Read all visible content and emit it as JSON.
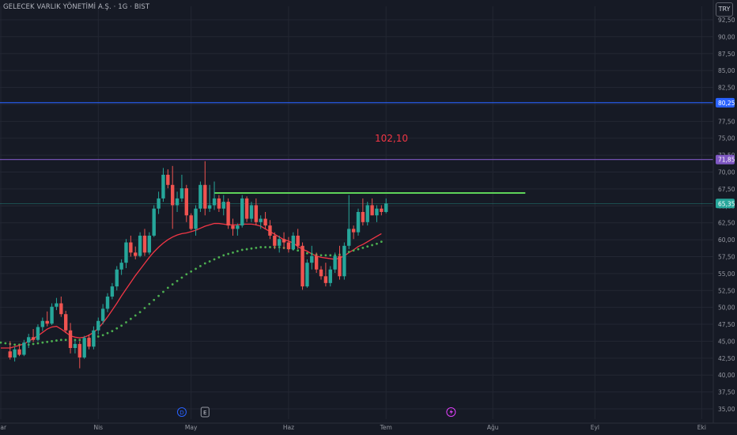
{
  "header": {
    "title": "GELECEK VARLIK YÖNETİMİ A.Ş. · 1G · BIST",
    "currency": "TRY"
  },
  "annotation": "102,10",
  "markers": {
    "dividend": "D",
    "earnings": "E"
  },
  "colors": {
    "background": "#161a25",
    "grid": "#232733",
    "up": "#26a69a",
    "down": "#ef5350",
    "ema_red": "#f23645",
    "sma_green": "#4caf50",
    "blue_line": "#2962ff",
    "purple_line": "#7e57c2",
    "resistance": "#5fd45a",
    "annotation": "#f23645",
    "axis_text": "#9598a1"
  },
  "chart_data": {
    "type": "candlestick",
    "symbol": "GELECEK VARLIK YÖNETİMİ A.Ş.",
    "interval": "1G",
    "exchange": "BIST",
    "y_axis": {
      "min": 35,
      "max": 92.5,
      "step": 2.5,
      "tick_labels": [
        "35,00",
        "37,50",
        "40,00",
        "42,50",
        "45,00",
        "47,50",
        "50,00",
        "52,50",
        "55,00",
        "57,50",
        "60,00",
        "62,50",
        "65,00",
        "67,50",
        "70,00",
        "72,50",
        "75,00",
        "77,50",
        "80,00",
        "82,50",
        "85,00",
        "87,50",
        "90,00",
        "92,50"
      ]
    },
    "x_axis": {
      "labels": [
        {
          "text": "Mar",
          "bar": 0
        },
        {
          "text": "Nis",
          "bar": 21
        },
        {
          "text": "May",
          "bar": 41
        },
        {
          "text": "Haz",
          "bar": 62
        },
        {
          "text": "Tem",
          "bar": 83
        },
        {
          "text": "Ağu",
          "bar": 106
        },
        {
          "text": "Eyl",
          "bar": 128
        },
        {
          "text": "Eki",
          "bar": 151
        }
      ]
    },
    "candles": [
      [
        43.5,
        45.0,
        42.3,
        42.6
      ],
      [
        42.6,
        44.2,
        42.0,
        43.8
      ],
      [
        43.8,
        44.5,
        42.8,
        43.0
      ],
      [
        43.0,
        45.2,
        42.8,
        44.8
      ],
      [
        44.8,
        46.1,
        44.0,
        45.6
      ],
      [
        45.6,
        46.8,
        44.9,
        45.2
      ],
      [
        45.2,
        47.5,
        45.0,
        47.1
      ],
      [
        47.1,
        48.5,
        46.5,
        48.0
      ],
      [
        48.0,
        49.4,
        47.2,
        47.6
      ],
      [
        47.6,
        50.6,
        47.4,
        50.1
      ],
      [
        50.1,
        51.4,
        49.6,
        50.6
      ],
      [
        50.6,
        51.6,
        48.6,
        49.0
      ],
      [
        49.0,
        49.5,
        46.2,
        46.6
      ],
      [
        46.6,
        47.7,
        43.2,
        44.0
      ],
      [
        44.0,
        45.2,
        43.2,
        44.6
      ],
      [
        44.6,
        45.0,
        41.0,
        42.6
      ],
      [
        42.6,
        45.8,
        42.4,
        45.5
      ],
      [
        45.5,
        46.0,
        43.8,
        44.2
      ],
      [
        44.2,
        47.2,
        43.8,
        46.6
      ],
      [
        46.6,
        48.5,
        46.0,
        48.0
      ],
      [
        48.0,
        50.5,
        47.5,
        49.8
      ],
      [
        49.8,
        52.1,
        49.3,
        51.6
      ],
      [
        51.6,
        53.6,
        51.2,
        53.1
      ],
      [
        53.1,
        56.1,
        52.5,
        55.6
      ],
      [
        55.6,
        57.1,
        54.8,
        56.6
      ],
      [
        56.6,
        60.1,
        55.8,
        59.6
      ],
      [
        59.6,
        60.6,
        57.5,
        58.1
      ],
      [
        58.1,
        59.0,
        57.1,
        57.6
      ],
      [
        57.6,
        61.1,
        57.4,
        60.6
      ],
      [
        60.6,
        61.6,
        57.6,
        58.1
      ],
      [
        58.1,
        61.1,
        57.8,
        60.6
      ],
      [
        60.6,
        65.1,
        60.4,
        64.6
      ],
      [
        64.6,
        67.1,
        63.8,
        66.1
      ],
      [
        66.1,
        70.6,
        65.6,
        69.6
      ],
      [
        69.6,
        70.4,
        67.6,
        68.1
      ],
      [
        68.1,
        70.9,
        61.6,
        65.1
      ],
      [
        65.1,
        67.1,
        64.1,
        66.1
      ],
      [
        66.1,
        69.6,
        65.6,
        67.6
      ],
      [
        67.6,
        68.1,
        62.6,
        63.6
      ],
      [
        63.6,
        63.9,
        61.4,
        61.6
      ],
      [
        61.6,
        65.1,
        60.6,
        64.6
      ],
      [
        64.6,
        68.6,
        64.1,
        68.1
      ],
      [
        68.1,
        71.6,
        63.6,
        64.6
      ],
      [
        64.6,
        68.1,
        64.1,
        65.1
      ],
      [
        65.1,
        68.6,
        64.4,
        66.1
      ],
      [
        66.1,
        66.6,
        64.1,
        64.6
      ],
      [
        64.6,
        66.6,
        63.6,
        65.6
      ],
      [
        65.6,
        66.1,
        61.6,
        62.1
      ],
      [
        62.1,
        63.1,
        60.6,
        61.6
      ],
      [
        61.6,
        62.4,
        60.6,
        62.1
      ],
      [
        62.1,
        66.6,
        61.8,
        66.1
      ],
      [
        66.1,
        66.4,
        62.6,
        63.1
      ],
      [
        63.1,
        65.6,
        62.6,
        65.1
      ],
      [
        65.1,
        66.1,
        62.1,
        62.6
      ],
      [
        62.6,
        63.6,
        61.6,
        63.1
      ],
      [
        63.1,
        64.1,
        61.6,
        62.1
      ],
      [
        62.1,
        62.9,
        60.1,
        60.6
      ],
      [
        60.6,
        61.1,
        58.6,
        59.1
      ],
      [
        59.1,
        60.6,
        58.1,
        60.1
      ],
      [
        60.1,
        61.1,
        58.6,
        59.6
      ],
      [
        59.6,
        60.4,
        58.1,
        58.6
      ],
      [
        58.6,
        61.1,
        58.4,
        60.6
      ],
      [
        60.6,
        61.6,
        58.6,
        59.1
      ],
      [
        59.1,
        59.6,
        52.6,
        53.1
      ],
      [
        53.1,
        57.1,
        52.9,
        56.6
      ],
      [
        56.6,
        59.1,
        55.6,
        57.6
      ],
      [
        57.6,
        58.1,
        55.1,
        55.6
      ],
      [
        55.6,
        56.1,
        54.1,
        54.6
      ],
      [
        54.6,
        56.6,
        53.1,
        53.6
      ],
      [
        53.6,
        56.1,
        53.1,
        55.6
      ],
      [
        55.6,
        58.1,
        55.1,
        57.6
      ],
      [
        57.6,
        59.1,
        54.1,
        54.6
      ],
      [
        54.6,
        59.6,
        54.1,
        59.1
      ],
      [
        59.1,
        66.6,
        58.6,
        61.6
      ],
      [
        61.6,
        62.1,
        60.1,
        61.1
      ],
      [
        61.1,
        64.6,
        60.6,
        64.1
      ],
      [
        64.1,
        66.1,
        62.1,
        62.6
      ],
      [
        62.6,
        65.6,
        62.1,
        65.1
      ],
      [
        65.1,
        66.1,
        63.6,
        63.6
      ],
      [
        63.6,
        65.1,
        62.6,
        64.6
      ],
      [
        64.6,
        65.1,
        63.6,
        64.1
      ],
      [
        64.1,
        66.1,
        63.9,
        65.35
      ]
    ],
    "candle_first_bar": 2,
    "series": [
      {
        "name": "",
        "style": "line",
        "values": [
          44.0,
          44.0,
          44.0,
          44.2,
          44.4,
          44.6,
          45.0,
          45.4,
          45.8,
          46.3,
          46.8,
          47.1,
          47.2,
          46.8,
          46.3,
          45.8,
          45.6,
          45.5,
          45.6,
          45.9,
          46.3,
          46.9,
          47.7,
          48.6,
          49.6,
          50.6,
          51.7,
          52.7,
          53.7,
          54.7,
          55.6,
          56.5,
          57.4,
          58.2,
          58.9,
          59.5,
          60.0,
          60.4,
          60.7,
          60.9,
          61.0,
          61.2,
          61.4,
          61.7,
          62.0,
          62.2,
          62.4,
          62.4,
          62.3,
          62.2,
          62.2,
          62.2,
          62.3,
          62.3,
          62.3,
          62.2,
          62.0,
          61.6,
          61.2,
          60.8,
          60.4,
          60.0,
          59.8,
          59.5,
          59.0,
          58.6,
          58.3,
          57.9,
          57.6,
          57.4,
          57.3,
          57.2,
          57.1,
          57.3,
          57.6,
          58.1,
          58.5,
          59.0,
          59.3,
          59.7,
          60.1,
          60.5,
          60.9
        ]
      },
      {
        "name": "",
        "style": "dots",
        "values": [
          44.8,
          44.7,
          44.6,
          44.5,
          44.5,
          44.5,
          44.5,
          44.6,
          44.7,
          44.8,
          44.9,
          45.0,
          45.1,
          45.2,
          45.2,
          45.2,
          45.2,
          45.2,
          45.3,
          45.4,
          45.5,
          45.7,
          45.9,
          46.2,
          46.5,
          46.9,
          47.3,
          47.8,
          48.3,
          48.8,
          49.3,
          49.9,
          50.5,
          51.1,
          51.7,
          52.3,
          52.9,
          53.4,
          53.9,
          54.4,
          54.9,
          55.3,
          55.7,
          56.1,
          56.5,
          56.8,
          57.1,
          57.4,
          57.7,
          57.9,
          58.1,
          58.3,
          58.5,
          58.6,
          58.7,
          58.8,
          58.9,
          58.9,
          58.9,
          58.9,
          58.9,
          58.8,
          58.7,
          58.6,
          58.4,
          58.2,
          58.0,
          57.9,
          57.8,
          57.7,
          57.7,
          57.7,
          57.7,
          57.8,
          58.0,
          58.2,
          58.4,
          58.6,
          58.8,
          59.0,
          59.2,
          59.4,
          59.7
        ]
      }
    ],
    "horizontal_lines": [
      {
        "price": 80.25,
        "label": "80,25",
        "color": "#2962ff"
      },
      {
        "price": 71.85,
        "label": "71,85",
        "color": "#7e57c2"
      },
      {
        "price": 65.35,
        "label": "65,35",
        "color": "#26a69a"
      }
    ],
    "resistance_line": {
      "price": 66.9,
      "from_bar": 46,
      "to_bar": 113
    },
    "event_markers": [
      {
        "kind": "dividend",
        "bar": 39
      },
      {
        "kind": "earnings",
        "bar": 44
      },
      {
        "kind": "flash",
        "bar": 97
      }
    ],
    "grid": true
  }
}
